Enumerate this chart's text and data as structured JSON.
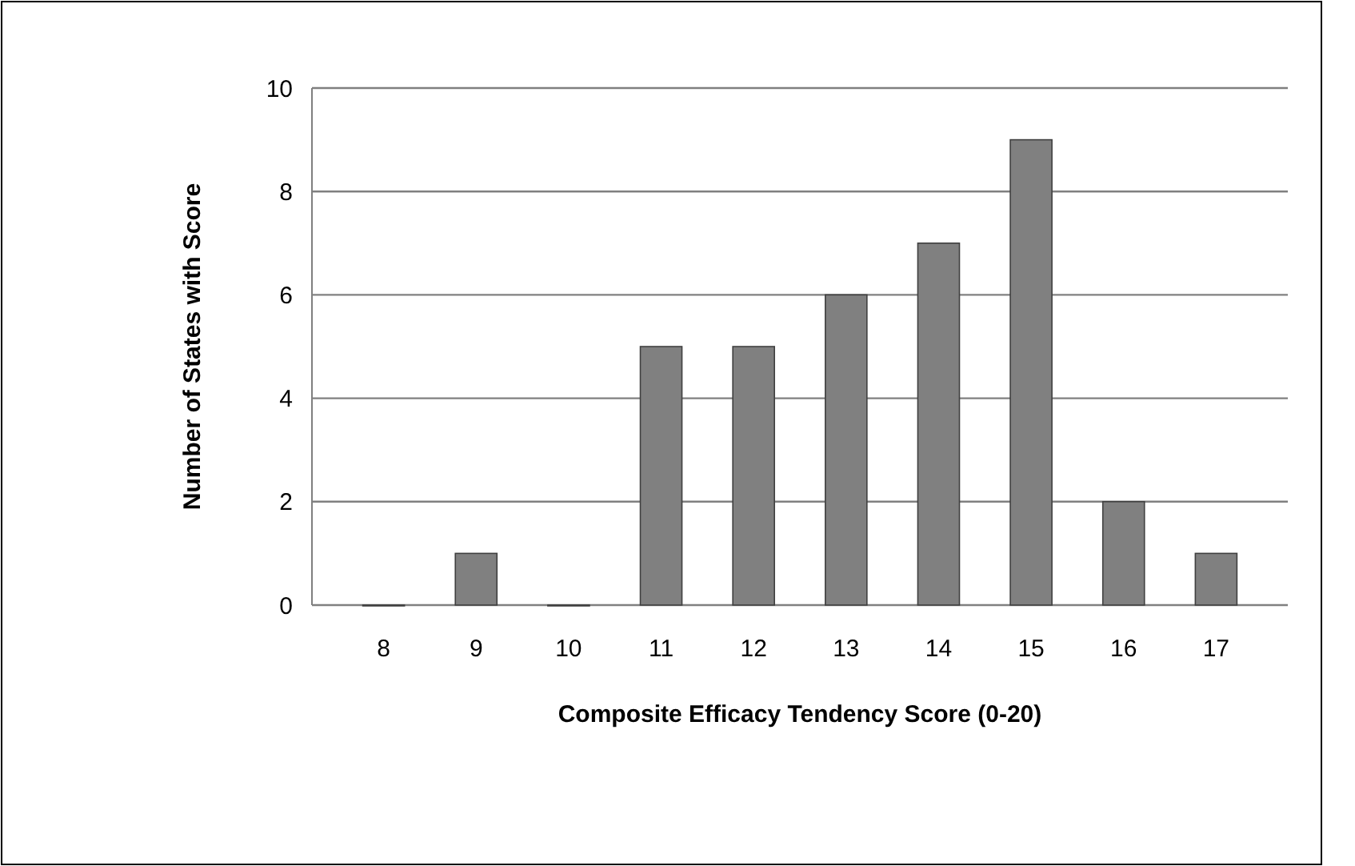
{
  "chart_data": {
    "type": "bar",
    "xlabel": "Composite Efficacy Tendency Score (0-20)",
    "ylabel": "Number of States with Score",
    "categories": [
      "8",
      "9",
      "10",
      "11",
      "12",
      "13",
      "14",
      "15",
      "16",
      "17"
    ],
    "values": [
      0,
      1,
      0,
      5,
      5,
      6,
      7,
      9,
      2,
      1
    ],
    "color": "#808080",
    "ylim": [
      0,
      10
    ],
    "yticks": [
      0,
      2,
      4,
      6,
      8,
      10
    ],
    "grid": "y"
  }
}
